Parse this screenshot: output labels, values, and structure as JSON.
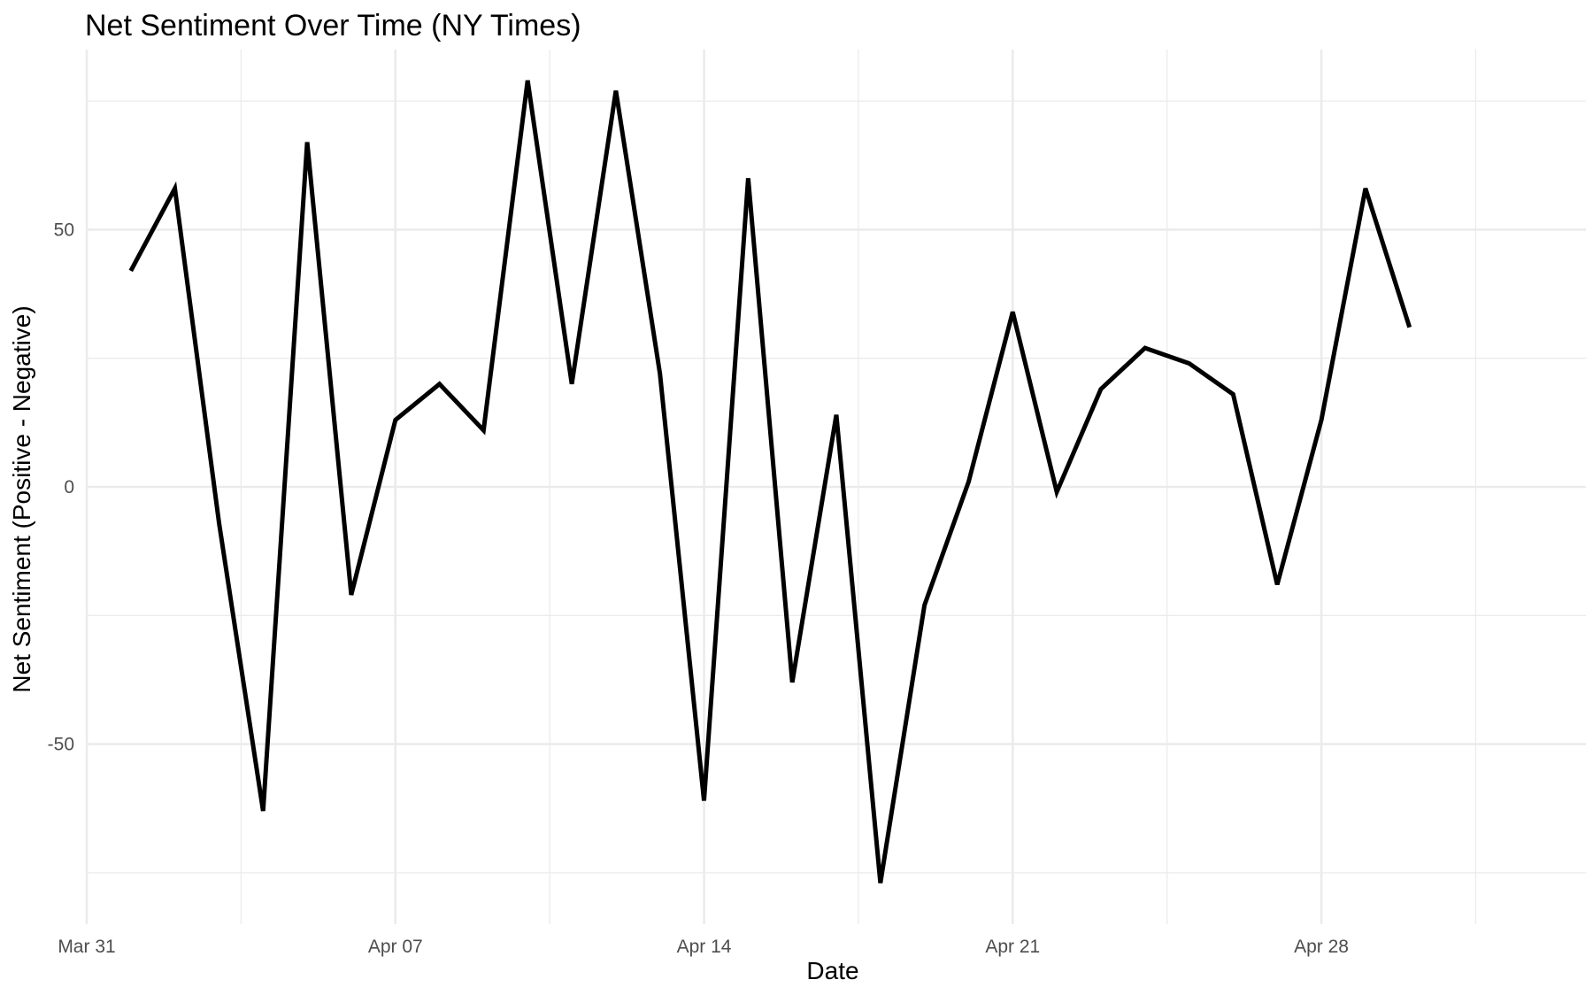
{
  "chart_data": {
    "type": "line",
    "title": "Net Sentiment Over Time (NY Times)",
    "xlabel": "Date",
    "ylabel": "Net Sentiment (Positive - Negative)",
    "x": [
      "2024-04-01",
      "2024-04-02",
      "2024-04-03",
      "2024-04-04",
      "2024-04-05",
      "2024-04-06",
      "2024-04-07",
      "2024-04-08",
      "2024-04-09",
      "2024-04-10",
      "2024-04-11",
      "2024-04-12",
      "2024-04-13",
      "2024-04-14",
      "2024-04-15",
      "2024-04-16",
      "2024-04-17",
      "2024-04-18",
      "2024-04-19",
      "2024-04-20",
      "2024-04-21",
      "2024-04-22",
      "2024-04-23",
      "2024-04-24",
      "2024-04-25",
      "2024-04-26",
      "2024-04-27",
      "2024-04-28",
      "2024-04-29",
      "2024-04-30"
    ],
    "series": [
      {
        "values": [
          42,
          58,
          -7,
          -63,
          67,
          -21,
          13,
          20,
          11,
          79,
          20,
          77,
          22,
          -61,
          60,
          -38,
          14,
          -77,
          -23,
          1,
          34,
          -1,
          19,
          27,
          24,
          18,
          -19,
          13,
          58,
          31
        ]
      }
    ],
    "xlim": [
      "2024-03-31",
      "2024-05-04"
    ],
    "ylim": [
      -85,
      85
    ],
    "x_ticks": [
      {
        "date": "2024-03-31",
        "label": "Mar 31"
      },
      {
        "date": "2024-04-07",
        "label": "Apr 07"
      },
      {
        "date": "2024-04-14",
        "label": "Apr 14"
      },
      {
        "date": "2024-04-21",
        "label": "Apr 21"
      },
      {
        "date": "2024-04-28",
        "label": "Apr 28"
      }
    ],
    "y_ticks": [
      {
        "value": -50,
        "label": "-50"
      },
      {
        "value": 0,
        "label": "0"
      },
      {
        "value": 50,
        "label": "50"
      }
    ],
    "grid": true,
    "legend": "none",
    "line_color": "#000000"
  }
}
